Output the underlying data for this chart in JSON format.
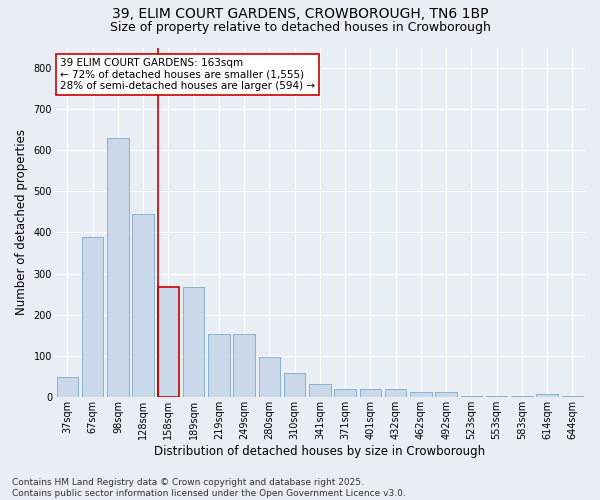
{
  "title_line1": "39, ELIM COURT GARDENS, CROWBOROUGH, TN6 1BP",
  "title_line2": "Size of property relative to detached houses in Crowborough",
  "xlabel": "Distribution of detached houses by size in Crowborough",
  "ylabel": "Number of detached properties",
  "categories": [
    "37sqm",
    "67sqm",
    "98sqm",
    "128sqm",
    "158sqm",
    "189sqm",
    "219sqm",
    "249sqm",
    "280sqm",
    "310sqm",
    "341sqm",
    "371sqm",
    "401sqm",
    "432sqm",
    "462sqm",
    "492sqm",
    "523sqm",
    "553sqm",
    "583sqm",
    "614sqm",
    "644sqm"
  ],
  "values": [
    47,
    390,
    630,
    445,
    268,
    268,
    152,
    152,
    97,
    57,
    30,
    18,
    18,
    18,
    12,
    12,
    1,
    1,
    1,
    8,
    1
  ],
  "bar_color": "#c9d9ea",
  "bar_edge_color": "#7aaac8",
  "highlight_bar_index": 4,
  "highlight_bar_edge_color": "#cc0000",
  "vline_color": "#cc0000",
  "annotation_text": "39 ELIM COURT GARDENS: 163sqm\n← 72% of detached houses are smaller (1,555)\n28% of semi-detached houses are larger (594) →",
  "annotation_box_facecolor": "#ffffff",
  "annotation_box_edgecolor": "#cc0000",
  "ylim": [
    0,
    850
  ],
  "yticks": [
    0,
    100,
    200,
    300,
    400,
    500,
    600,
    700,
    800
  ],
  "background_color": "#e8eef4",
  "plot_background_color": "#e8eef4",
  "footer_line1": "Contains HM Land Registry data © Crown copyright and database right 2025.",
  "footer_line2": "Contains public sector information licensed under the Open Government Licence v3.0.",
  "title_fontsize": 10,
  "subtitle_fontsize": 9,
  "axis_label_fontsize": 8.5,
  "tick_fontsize": 7,
  "annotation_fontsize": 7.5,
  "footer_fontsize": 6.5
}
